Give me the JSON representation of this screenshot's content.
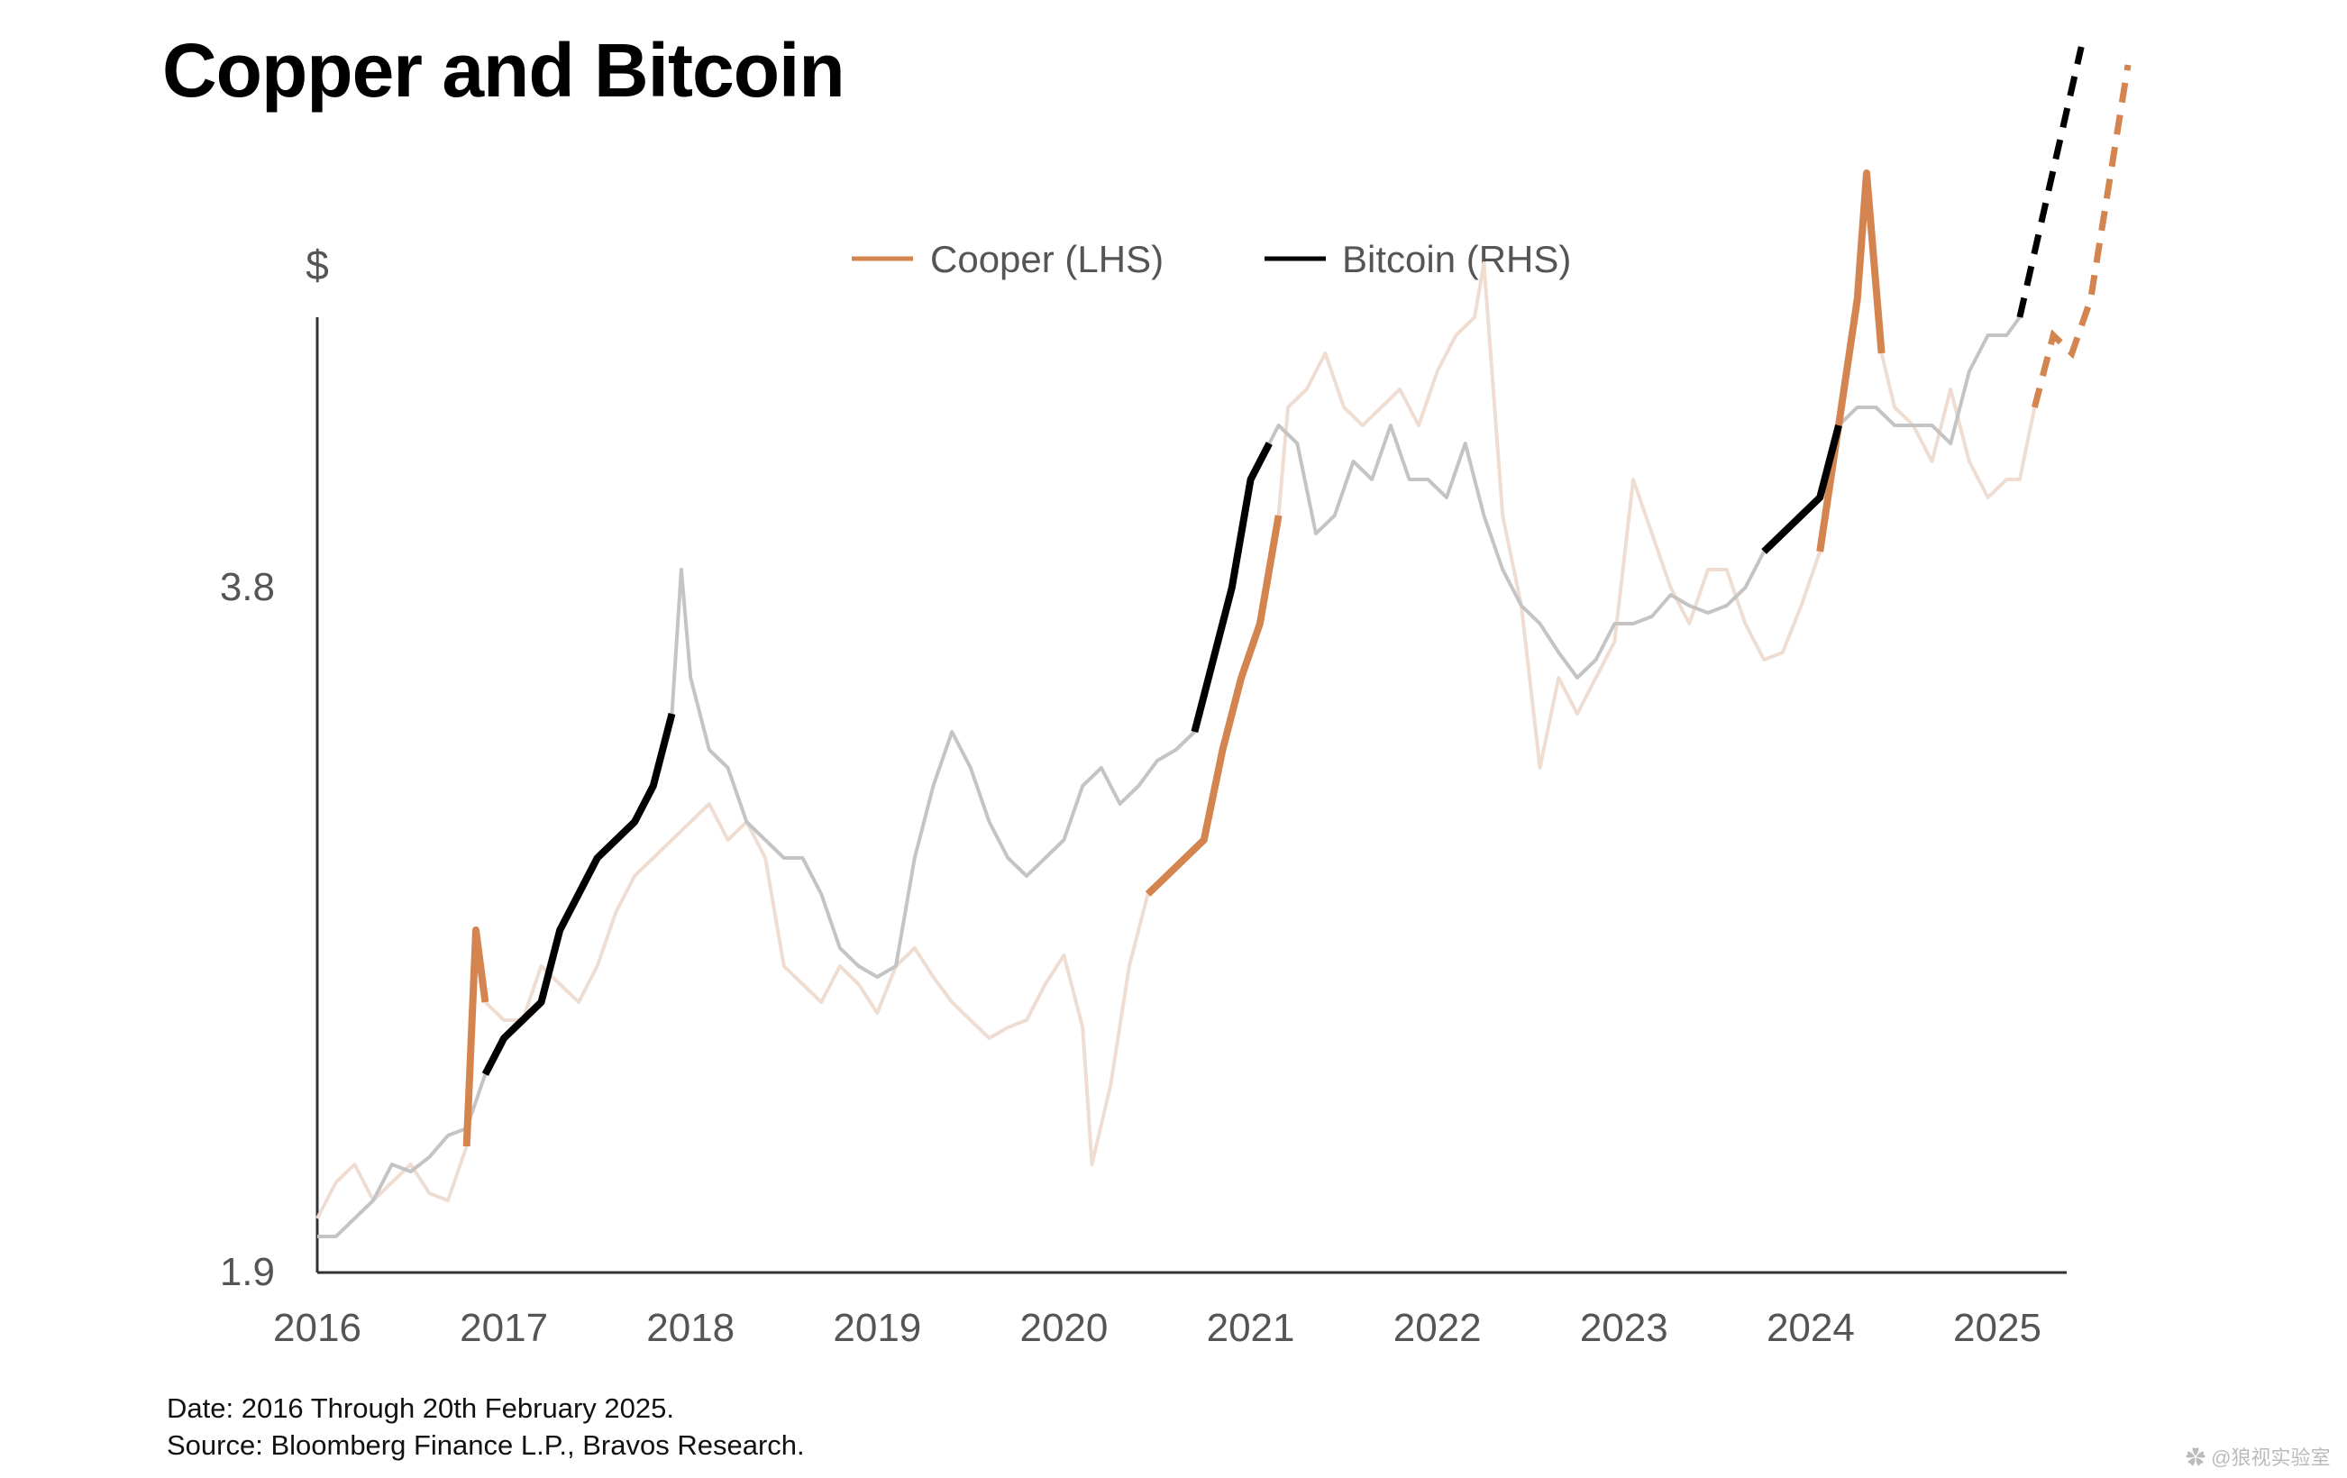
{
  "chart_data": {
    "type": "line",
    "title": "Copper and Bitcoin",
    "ylabel": "$",
    "y_ticks": [
      "3.8",
      "1.9"
    ],
    "x_ticks": [
      "2016",
      "2017",
      "2018",
      "2019",
      "2020",
      "2021",
      "2022",
      "2023",
      "2024",
      "2025"
    ],
    "legend": [
      "Cooper (LHS)",
      "Bitcoin (RHS)"
    ],
    "legend_position": "top-center",
    "grid": false,
    "colors": {
      "copper": "#d4844f",
      "copper_faded": "#f0ddd1",
      "bitcoin": "#000000",
      "bitcoin_faded": "#c4c4c4"
    },
    "series": [
      {
        "name": "Cooper (LHS)",
        "axis": "left",
        "x": [
          2016.0,
          2016.1,
          2016.2,
          2016.3,
          2016.4,
          2016.5,
          2016.6,
          2016.7,
          2016.8,
          2016.85,
          2016.9,
          2017.0,
          2017.1,
          2017.2,
          2017.3,
          2017.4,
          2017.5,
          2017.6,
          2017.7,
          2017.8,
          2017.9,
          2018.0,
          2018.1,
          2018.2,
          2018.3,
          2018.4,
          2018.5,
          2018.6,
          2018.7,
          2018.8,
          2018.9,
          2019.0,
          2019.1,
          2019.2,
          2019.3,
          2019.4,
          2019.5,
          2019.6,
          2019.7,
          2019.8,
          2019.9,
          2020.0,
          2020.1,
          2020.15,
          2020.25,
          2020.35,
          2020.45,
          2020.55,
          2020.65,
          2020.75,
          2020.85,
          2020.95,
          2021.05,
          2021.15,
          2021.2,
          2021.3,
          2021.4,
          2021.5,
          2021.6,
          2021.7,
          2021.8,
          2021.9,
          2022.0,
          2022.1,
          2022.2,
          2022.25,
          2022.35,
          2022.45,
          2022.55,
          2022.65,
          2022.75,
          2022.85,
          2022.95,
          2023.05,
          2023.15,
          2023.25,
          2023.35,
          2023.45,
          2023.55,
          2023.65,
          2023.75,
          2023.85,
          2023.95,
          2024.05,
          2024.15,
          2024.25,
          2024.3,
          2024.38,
          2024.45,
          2024.55,
          2024.65,
          2024.75,
          2024.85,
          2024.95,
          2025.05,
          2025.12,
          2025.2
        ],
        "y": [
          2.05,
          2.15,
          2.2,
          2.1,
          2.15,
          2.2,
          2.12,
          2.1,
          2.25,
          2.85,
          2.65,
          2.6,
          2.6,
          2.75,
          2.7,
          2.65,
          2.75,
          2.9,
          3.0,
          3.05,
          3.1,
          3.15,
          3.2,
          3.1,
          3.15,
          3.05,
          2.75,
          2.7,
          2.65,
          2.75,
          2.7,
          2.62,
          2.75,
          2.8,
          2.72,
          2.65,
          2.6,
          2.55,
          2.58,
          2.6,
          2.7,
          2.78,
          2.58,
          2.2,
          2.42,
          2.75,
          2.95,
          3.0,
          3.05,
          3.1,
          3.35,
          3.55,
          3.7,
          4.0,
          4.3,
          4.35,
          4.45,
          4.3,
          4.25,
          4.3,
          4.35,
          4.25,
          4.4,
          4.5,
          4.55,
          4.7,
          4.0,
          3.75,
          3.3,
          3.55,
          3.45,
          3.55,
          3.65,
          4.1,
          3.95,
          3.8,
          3.7,
          3.85,
          3.85,
          3.7,
          3.6,
          3.62,
          3.75,
          3.9,
          4.25,
          4.6,
          4.95,
          4.45,
          4.3,
          4.25,
          4.15,
          4.35,
          4.15,
          4.05,
          4.1,
          4.1,
          4.3
        ]
      },
      {
        "name": "Bitcoin (RHS)",
        "axis": "right",
        "x": [
          2016.0,
          2016.1,
          2016.2,
          2016.3,
          2016.4,
          2016.5,
          2016.6,
          2016.7,
          2016.8,
          2016.9,
          2017.0,
          2017.1,
          2017.2,
          2017.3,
          2017.4,
          2017.5,
          2017.6,
          2017.7,
          2017.8,
          2017.9,
          2017.95,
          2018.0,
          2018.1,
          2018.2,
          2018.3,
          2018.4,
          2018.5,
          2018.6,
          2018.7,
          2018.8,
          2018.9,
          2019.0,
          2019.1,
          2019.2,
          2019.3,
          2019.4,
          2019.5,
          2019.6,
          2019.7,
          2019.8,
          2019.9,
          2020.0,
          2020.1,
          2020.2,
          2020.3,
          2020.4,
          2020.5,
          2020.6,
          2020.7,
          2020.8,
          2020.9,
          2021.0,
          2021.1,
          2021.15,
          2021.25,
          2021.35,
          2021.45,
          2021.55,
          2021.65,
          2021.75,
          2021.85,
          2021.95,
          2022.05,
          2022.15,
          2022.25,
          2022.35,
          2022.45,
          2022.55,
          2022.65,
          2022.75,
          2022.85,
          2022.95,
          2023.05,
          2023.15,
          2023.25,
          2023.35,
          2023.45,
          2023.55,
          2023.65,
          2023.75,
          2023.85,
          2023.95,
          2024.05,
          2024.15,
          2024.25,
          2024.35,
          2024.45,
          2024.55,
          2024.65,
          2024.75,
          2024.85,
          2024.95,
          2025.05,
          2025.12
        ],
        "y": [
          2.0,
          2.0,
          2.05,
          2.1,
          2.2,
          2.18,
          2.22,
          2.28,
          2.3,
          2.45,
          2.55,
          2.6,
          2.65,
          2.85,
          2.95,
          3.05,
          3.1,
          3.15,
          3.25,
          3.45,
          3.85,
          3.55,
          3.35,
          3.3,
          3.15,
          3.1,
          3.05,
          3.05,
          2.95,
          2.8,
          2.75,
          2.72,
          2.75,
          3.05,
          3.25,
          3.4,
          3.3,
          3.15,
          3.05,
          3.0,
          3.05,
          3.1,
          3.25,
          3.3,
          3.2,
          3.25,
          3.32,
          3.35,
          3.4,
          3.6,
          3.8,
          4.1,
          4.2,
          4.25,
          4.2,
          3.95,
          4.0,
          4.15,
          4.1,
          4.25,
          4.1,
          4.1,
          4.05,
          4.2,
          4.0,
          3.85,
          3.75,
          3.7,
          3.62,
          3.55,
          3.6,
          3.7,
          3.7,
          3.72,
          3.78,
          3.75,
          3.73,
          3.75,
          3.8,
          3.9,
          3.95,
          4.0,
          4.05,
          4.25,
          4.3,
          4.3,
          4.25,
          4.25,
          4.25,
          4.2,
          4.4,
          4.5,
          4.5,
          4.55
        ]
      }
    ]
  },
  "footer": {
    "line1": "Date: 2016 Through 20th February 2025.",
    "line2": "Source: Bloomberg Finance L.P., Bravos Research."
  },
  "watermark": "✿ @狼视实验室"
}
